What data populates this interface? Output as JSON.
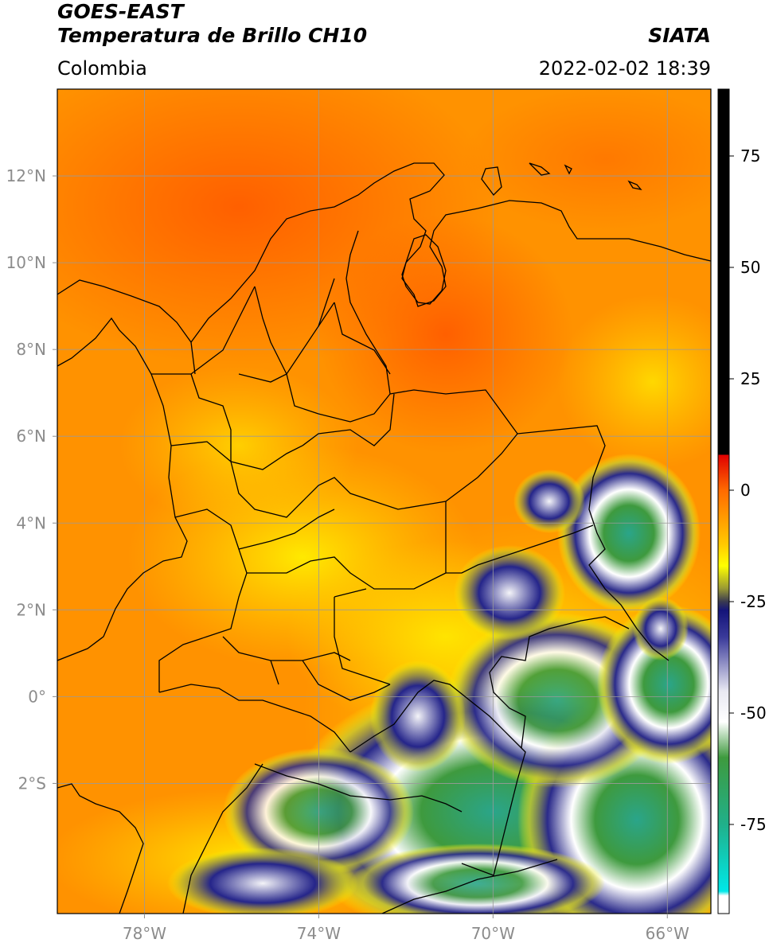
{
  "header": {
    "satellite": "GOES-EAST",
    "product": "Temperatura de Brillo CH10",
    "brand": "SIATA",
    "region": "Colombia",
    "timestamp": "2022-02-02 18:39"
  },
  "map": {
    "lon_range": [
      -80,
      -65
    ],
    "lat_range": [
      -5,
      14
    ],
    "lon_ticks": [
      {
        "value": -78,
        "label": "78°W"
      },
      {
        "value": -74,
        "label": "74°W"
      },
      {
        "value": -70,
        "label": "70°W"
      },
      {
        "value": -66,
        "label": "66°W"
      }
    ],
    "lat_ticks": [
      {
        "value": 12,
        "label": "12°N"
      },
      {
        "value": 10,
        "label": "10°N"
      },
      {
        "value": 8,
        "label": "8°N"
      },
      {
        "value": 6,
        "label": "6°N"
      },
      {
        "value": 4,
        "label": "4°N"
      },
      {
        "value": 2,
        "label": "2°N"
      },
      {
        "value": 0,
        "label": "0°"
      },
      {
        "value": -2,
        "label": "2°S"
      }
    ]
  },
  "colorbar": {
    "range": [
      -95,
      90
    ],
    "ticks": [
      {
        "value": 75,
        "label": "75"
      },
      {
        "value": 50,
        "label": "50"
      },
      {
        "value": 25,
        "label": "25"
      },
      {
        "value": 0,
        "label": "0"
      },
      {
        "value": -25,
        "label": "-25"
      },
      {
        "value": -50,
        "label": "-50"
      },
      {
        "value": -75,
        "label": "-75"
      }
    ],
    "stops": [
      {
        "value": 90,
        "color": "#000000"
      },
      {
        "value": 8,
        "color": "#000000"
      },
      {
        "value": 7.9,
        "color": "#e00000"
      },
      {
        "value": 0,
        "color": "#ff6a00"
      },
      {
        "value": -12,
        "color": "#ffc800"
      },
      {
        "value": -17,
        "color": "#ffff00"
      },
      {
        "value": -22,
        "color": "#9a9a33"
      },
      {
        "value": -25,
        "color": "#3a3a50"
      },
      {
        "value": -27,
        "color": "#14147a"
      },
      {
        "value": -33,
        "color": "#3a3a9a"
      },
      {
        "value": -45,
        "color": "#e8e8f2"
      },
      {
        "value": -52,
        "color": "#ffffff"
      },
      {
        "value": -60,
        "color": "#3e9a3e"
      },
      {
        "value": -75,
        "color": "#20b08a"
      },
      {
        "value": -90,
        "color": "#00e8e8"
      },
      {
        "value": -91,
        "color": "#ffffff"
      },
      {
        "value": -95,
        "color": "#ffffff"
      }
    ]
  }
}
